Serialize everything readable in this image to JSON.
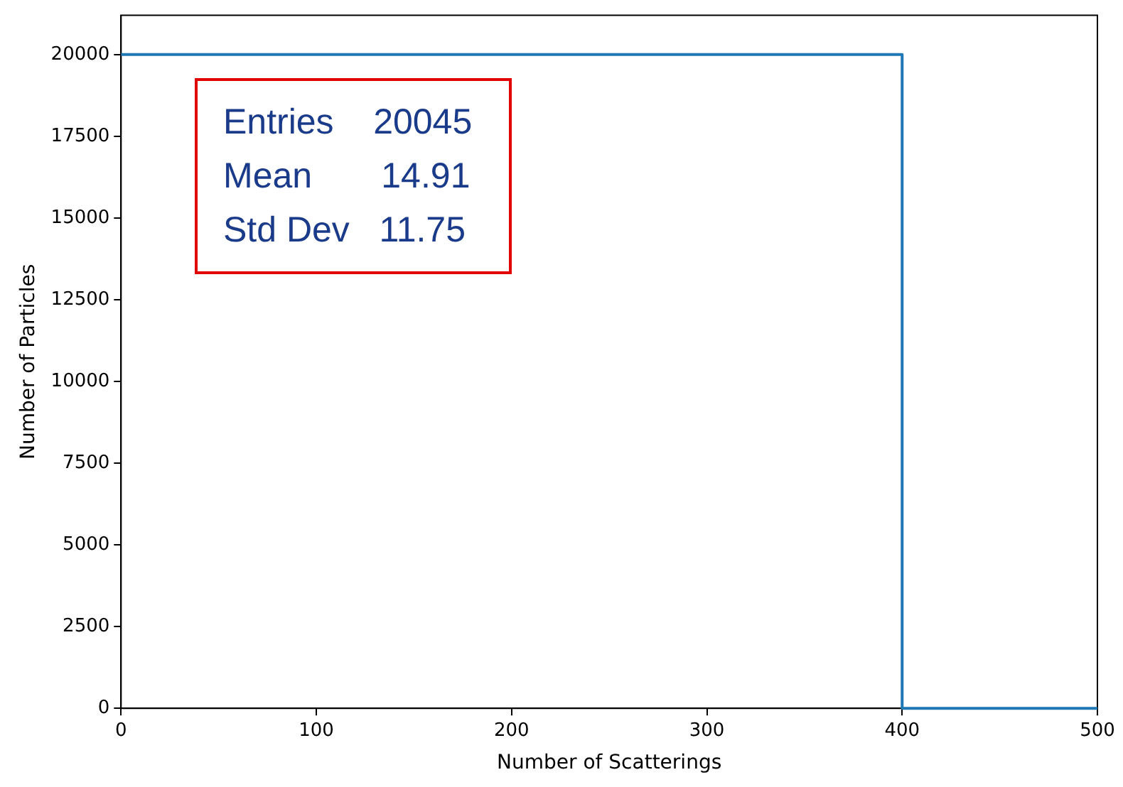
{
  "chart_data": {
    "type": "step",
    "xlabel": "Number of Scatterings",
    "ylabel": "Number of Particles",
    "x": [
      0,
      400,
      500
    ],
    "series": [
      {
        "color": "#1f77b4",
        "values": [
          20000,
          0,
          0
        ]
      }
    ],
    "xlim": [
      0,
      500
    ],
    "xticks": [
      0,
      100,
      200,
      300,
      400,
      500
    ],
    "ylim": [
      0,
      21200
    ],
    "yticks": [
      0,
      2500,
      5000,
      7500,
      10000,
      12500,
      15000,
      17500,
      20000
    ],
    "grid": false,
    "legend": false,
    "marker": "none",
    "line_style": "solid",
    "annotations": [
      "Entries    20045",
      "Mean       14.91",
      "Std Dev   11.75"
    ]
  }
}
